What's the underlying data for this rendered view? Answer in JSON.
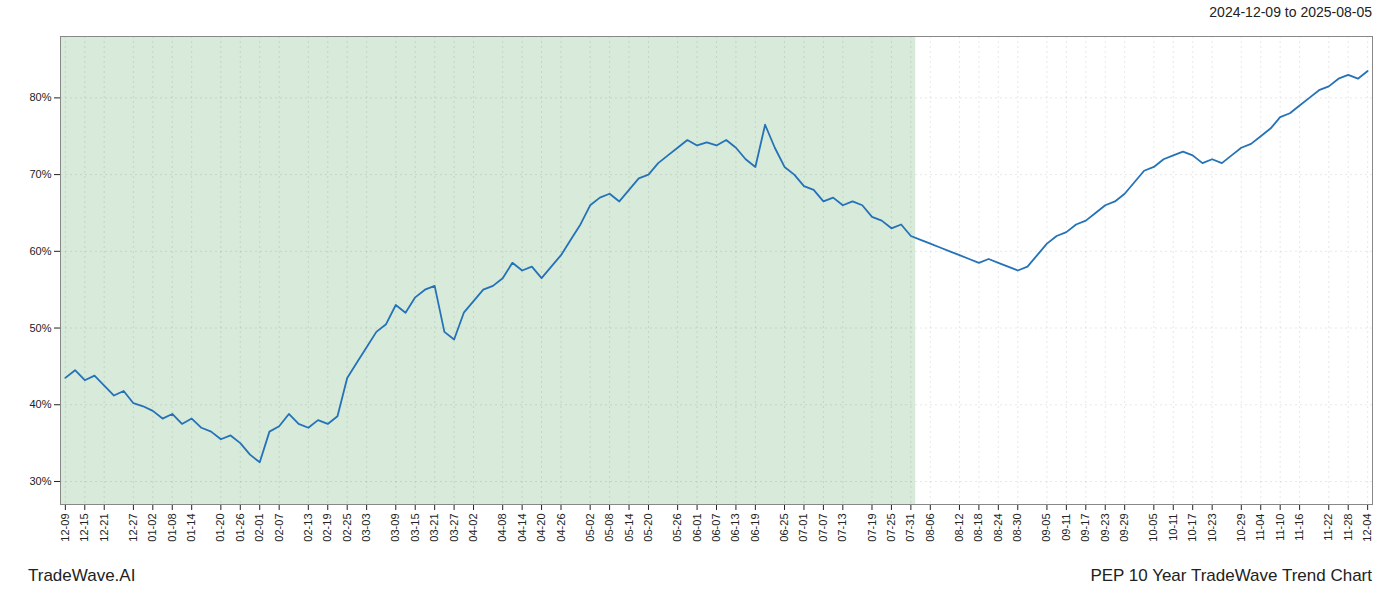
{
  "chart_data": {
    "type": "line",
    "title": "PEP 10 Year TradeWave Trend Chart",
    "subtitle": "2024-12-09 to 2025-08-05",
    "annotations": [
      "TradeWave.AI"
    ],
    "color": "#2472b8",
    "grid": true,
    "ylim": [
      27,
      88
    ],
    "yticks": [
      {
        "value": 30,
        "label": "30%"
      },
      {
        "value": 40,
        "label": "40%"
      },
      {
        "value": 50,
        "label": "50%"
      },
      {
        "value": 60,
        "label": "60%"
      },
      {
        "value": 70,
        "label": "70%"
      },
      {
        "value": 80,
        "label": "80%"
      }
    ],
    "shaded_region": {
      "start": "12-09",
      "end": "07-31",
      "color": "#d8ead9"
    },
    "categories": [
      "12-09",
      null,
      "12-15",
      null,
      "12-21",
      null,
      null,
      "12-27",
      null,
      "01-02",
      null,
      "01-08",
      null,
      "01-14",
      null,
      null,
      "01-20",
      null,
      "01-26",
      null,
      "02-01",
      null,
      "02-07",
      null,
      null,
      "02-13",
      null,
      "02-19",
      null,
      "02-25",
      null,
      "03-03",
      null,
      null,
      "03-09",
      null,
      "03-15",
      null,
      "03-21",
      null,
      "03-27",
      null,
      "04-02",
      null,
      null,
      "04-08",
      null,
      "04-14",
      null,
      "04-20",
      null,
      "04-26",
      null,
      null,
      "05-02",
      null,
      "05-08",
      null,
      "05-14",
      null,
      "05-20",
      null,
      null,
      "05-26",
      null,
      "06-01",
      null,
      "06-07",
      null,
      "06-13",
      null,
      "06-19",
      null,
      null,
      "06-25",
      null,
      "07-01",
      null,
      "07-07",
      null,
      "07-13",
      null,
      null,
      "07-19",
      null,
      "07-25",
      null,
      "07-31",
      null,
      "08-06",
      null,
      null,
      "08-12",
      null,
      "08-18",
      null,
      "08-24",
      null,
      "08-30",
      null,
      null,
      "09-05",
      null,
      "09-11",
      null,
      "09-17",
      null,
      "09-23",
      null,
      "09-29",
      null,
      null,
      "10-05",
      null,
      "10-11",
      null,
      "10-17",
      null,
      "10-23",
      null,
      null,
      "10-29",
      null,
      "11-04",
      null,
      "11-10",
      null,
      "11-16",
      null,
      null,
      "11-22",
      null,
      "11-28",
      null,
      "12-04"
    ],
    "values": [
      43.5,
      44.5,
      43.2,
      43.8,
      42.5,
      41.2,
      41.8,
      40.2,
      39.8,
      39.2,
      38.2,
      38.8,
      37.5,
      38.2,
      37.0,
      36.5,
      35.5,
      36.0,
      35.0,
      33.5,
      32.5,
      36.5,
      37.2,
      38.8,
      37.5,
      37.0,
      38.0,
      37.5,
      38.5,
      43.5,
      45.5,
      47.5,
      49.5,
      50.5,
      53.0,
      52.0,
      54.0,
      55.0,
      55.5,
      49.5,
      48.5,
      52.0,
      53.5,
      55.0,
      55.5,
      56.5,
      58.5,
      57.5,
      58.0,
      56.5,
      58.0,
      59.5,
      61.5,
      63.5,
      66.0,
      67.0,
      67.5,
      66.5,
      68.0,
      69.5,
      70.0,
      71.5,
      72.5,
      73.5,
      74.5,
      73.8,
      74.2,
      73.8,
      74.5,
      73.5,
      72.0,
      71.0,
      76.5,
      73.5,
      71.0,
      70.0,
      68.5,
      68.0,
      66.5,
      67.0,
      66.0,
      66.5,
      66.0,
      64.5,
      64.0,
      63.0,
      63.5,
      62.0,
      61.5,
      61.0,
      60.5,
      60.0,
      59.5,
      59.0,
      58.5,
      59.0,
      58.5,
      58.0,
      57.5,
      58.0,
      59.5,
      61.0,
      62.0,
      62.5,
      63.5,
      64.0,
      65.0,
      66.0,
      66.5,
      67.5,
      69.0,
      70.5,
      71.0,
      72.0,
      72.5,
      73.0,
      72.5,
      71.5,
      72.0,
      71.5,
      72.5,
      73.5,
      74.0,
      75.0,
      76.0,
      77.5,
      78.0,
      79.0,
      80.0,
      81.0,
      81.5,
      82.5,
      83.0,
      82.5,
      83.5
    ]
  }
}
